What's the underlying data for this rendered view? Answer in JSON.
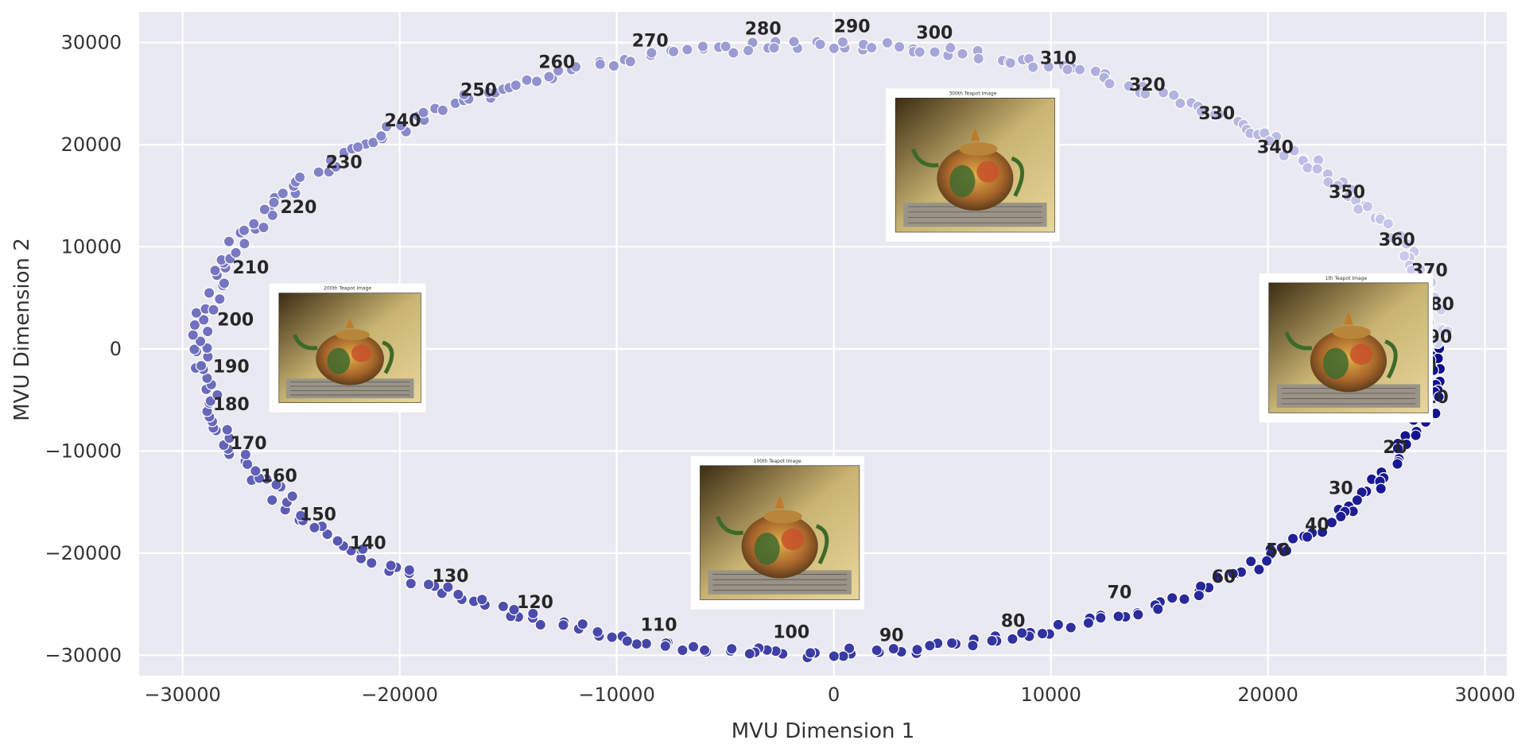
{
  "chart_data": {
    "type": "scatter",
    "title": "",
    "xlabel": "MVU Dimension 1",
    "ylabel": "MVU Dimension 2",
    "xlim": [
      -32000,
      31000
    ],
    "ylim": [
      -32000,
      33000
    ],
    "xticks": [
      -30000,
      -20000,
      -10000,
      0,
      10000,
      20000,
      30000
    ],
    "yticks": [
      -30000,
      -20000,
      -10000,
      0,
      10000,
      20000,
      30000
    ],
    "grid": true,
    "background": "#e9e9f2",
    "grid_color": "#ffffff",
    "color_start": "#0a0a8c",
    "color_end": "#d2d2ef",
    "num_points": 400,
    "ring": {
      "rx": 28500,
      "ry": 29800,
      "cx": -600,
      "cy": 0,
      "phase_deg": 0
    },
    "labels": [
      {
        "text": "0",
        "x": 27200,
        "y": -2200
      },
      {
        "text": "10",
        "x": 27200,
        "y": -5300
      },
      {
        "text": "20",
        "x": 25300,
        "y": -10200
      },
      {
        "text": "30",
        "x": 22800,
        "y": -14200
      },
      {
        "text": "40",
        "x": 21700,
        "y": -17800
      },
      {
        "text": "50",
        "x": 19900,
        "y": -20300
      },
      {
        "text": "60",
        "x": 17400,
        "y": -22900
      },
      {
        "text": "70",
        "x": 12600,
        "y": -24400
      },
      {
        "text": "80",
        "x": 7700,
        "y": -27200
      },
      {
        "text": "90",
        "x": 2100,
        "y": -28600
      },
      {
        "text": "100",
        "x": -2800,
        "y": -28300
      },
      {
        "text": "110",
        "x": -8900,
        "y": -27600
      },
      {
        "text": "120",
        "x": -14600,
        "y": -25400
      },
      {
        "text": "130",
        "x": -18500,
        "y": -22800
      },
      {
        "text": "140",
        "x": -22300,
        "y": -19600
      },
      {
        "text": "150",
        "x": -24600,
        "y": -16800
      },
      {
        "text": "160",
        "x": -26400,
        "y": -13000
      },
      {
        "text": "170",
        "x": -27800,
        "y": -9800
      },
      {
        "text": "180",
        "x": -28600,
        "y": -6000
      },
      {
        "text": "190",
        "x": -28600,
        "y": -2300
      },
      {
        "text": "200",
        "x": -28400,
        "y": 2300
      },
      {
        "text": "210",
        "x": -27700,
        "y": 7400
      },
      {
        "text": "220",
        "x": -25500,
        "y": 13300
      },
      {
        "text": "230",
        "x": -23400,
        "y": 17700
      },
      {
        "text": "240",
        "x": -20700,
        "y": 21800
      },
      {
        "text": "250",
        "x": -17200,
        "y": 24800
      },
      {
        "text": "260",
        "x": -13600,
        "y": 27500
      },
      {
        "text": "270",
        "x": -9300,
        "y": 29600
      },
      {
        "text": "280",
        "x": -4100,
        "y": 30800
      },
      {
        "text": "290",
        "x": 0,
        "y": 31000
      },
      {
        "text": "300",
        "x": 3800,
        "y": 30400
      },
      {
        "text": "310",
        "x": 9500,
        "y": 27900
      },
      {
        "text": "320",
        "x": 13600,
        "y": 25300
      },
      {
        "text": "330",
        "x": 16800,
        "y": 22500
      },
      {
        "text": "340",
        "x": 19500,
        "y": 19200
      },
      {
        "text": "350",
        "x": 22800,
        "y": 14800
      },
      {
        "text": "360",
        "x": 25100,
        "y": 10100
      },
      {
        "text": "370",
        "x": 26600,
        "y": 7100
      },
      {
        "text": "380",
        "x": 26900,
        "y": 3800
      },
      {
        "text": "390",
        "x": 26800,
        "y": 600
      }
    ],
    "images": [
      {
        "title": "300th Teapot Image",
        "x0": 2400,
        "x1": 10400,
        "y0": 10500,
        "y1": 25500
      },
      {
        "title": "200th Teapot Image",
        "x0": -26000,
        "x1": -18800,
        "y0": -6200,
        "y1": 6400
      },
      {
        "title": "1th Teapot Image",
        "x0": 19600,
        "x1": 27600,
        "y0": -7200,
        "y1": 7400
      },
      {
        "title": "100th Teapot Image",
        "x0": -6600,
        "x1": 1400,
        "y0": -25500,
        "y1": -10500
      }
    ]
  }
}
